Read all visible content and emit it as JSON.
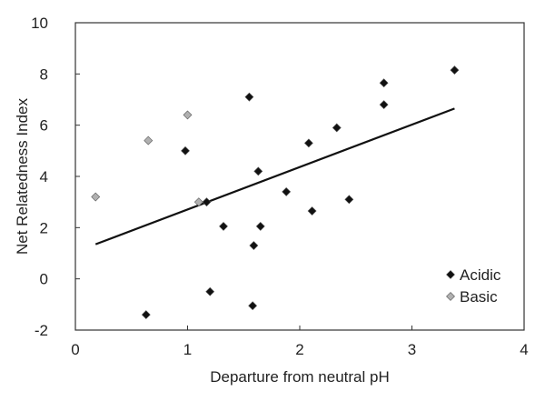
{
  "chart_data": {
    "type": "scatter",
    "title": "",
    "xlabel": "Departure from neutral pH",
    "ylabel": "Net Relatedness Index",
    "xlim": [
      0,
      4
    ],
    "ylim": [
      -2,
      10
    ],
    "x_ticks": [
      0,
      1,
      2,
      3,
      4
    ],
    "y_ticks": [
      -2,
      0,
      2,
      4,
      6,
      8,
      10
    ],
    "grid": false,
    "legend_position": "bottom-right",
    "series": [
      {
        "name": "Acidic",
        "color": "#111111",
        "marker": "diamond",
        "points": [
          {
            "x": 0.63,
            "y": -1.4
          },
          {
            "x": 0.98,
            "y": 5.0
          },
          {
            "x": 1.17,
            "y": 3.0
          },
          {
            "x": 1.2,
            "y": -0.5
          },
          {
            "x": 1.32,
            "y": 2.05
          },
          {
            "x": 1.55,
            "y": 7.1
          },
          {
            "x": 1.58,
            "y": -1.05
          },
          {
            "x": 1.59,
            "y": 1.3
          },
          {
            "x": 1.63,
            "y": 4.2
          },
          {
            "x": 1.65,
            "y": 2.05
          },
          {
            "x": 1.88,
            "y": 3.4
          },
          {
            "x": 2.08,
            "y": 5.3
          },
          {
            "x": 2.11,
            "y": 2.65
          },
          {
            "x": 2.33,
            "y": 5.9
          },
          {
            "x": 2.44,
            "y": 3.1
          },
          {
            "x": 2.75,
            "y": 7.65
          },
          {
            "x": 2.75,
            "y": 6.8
          },
          {
            "x": 3.38,
            "y": 8.15
          }
        ]
      },
      {
        "name": "Basic",
        "color": "#b0b0b0",
        "marker": "diamond",
        "points": [
          {
            "x": 0.18,
            "y": 3.2
          },
          {
            "x": 0.65,
            "y": 5.4
          },
          {
            "x": 1.0,
            "y": 6.4
          },
          {
            "x": 1.1,
            "y": 3.0
          }
        ]
      }
    ],
    "trendline": {
      "type": "linear",
      "color": "#111111",
      "x": [
        0.18,
        3.38
      ],
      "y": [
        1.35,
        6.65
      ]
    }
  }
}
